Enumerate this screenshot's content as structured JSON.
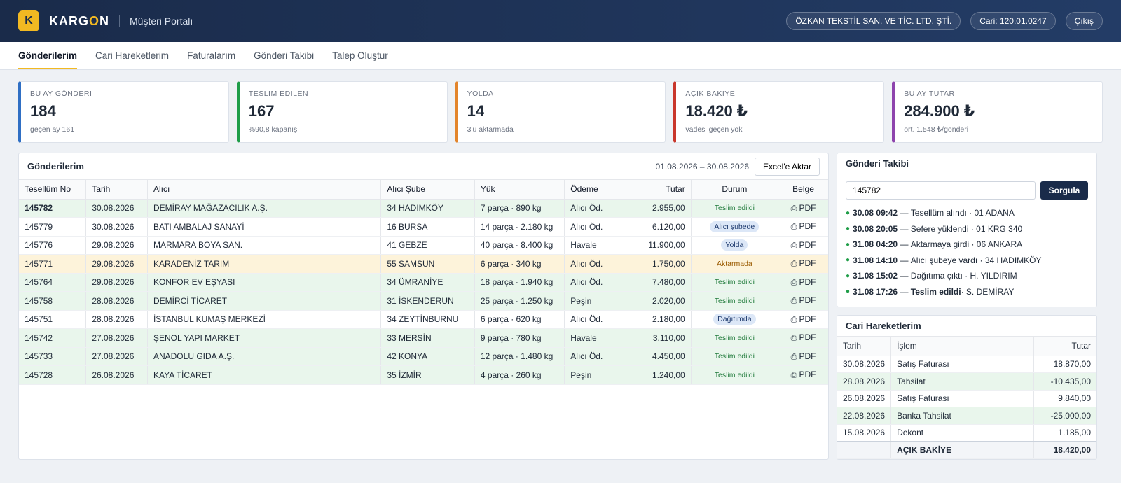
{
  "header": {
    "logo_letter": "K",
    "brand_pre": "KARG",
    "brand_o": "O",
    "brand_post": "N",
    "portal": "Müşteri Portalı",
    "company": "ÖZKAN TEKSTİL SAN. VE TİC. LTD. ŞTİ.",
    "account": "Cari: 120.01.0247",
    "logout": "Çıkış"
  },
  "tabs": [
    "Gönderilerim",
    "Cari Hareketlerim",
    "Faturalarım",
    "Gönderi Takibi",
    "Talep Oluştur"
  ],
  "kpis": [
    {
      "label": "BU AY GÖNDERİ",
      "value": "184",
      "sub": "geçen ay 161",
      "color": "#2f6fc4"
    },
    {
      "label": "TESLİM EDİLEN",
      "value": "167",
      "sub": "%90,8 kapanış",
      "color": "#1f9d48"
    },
    {
      "label": "YOLDA",
      "value": "14",
      "sub": "3'ü aktarmada",
      "color": "#e3852b"
    },
    {
      "label": "AÇIK BAKİYE",
      "value": "18.420 ₺",
      "sub": "vadesi geçen yok",
      "color": "#c9372c"
    },
    {
      "label": "BU AY TUTAR",
      "value": "284.900 ₺",
      "sub": "ort. 1.548 ₺/gönderi",
      "color": "#8e44ad"
    }
  ],
  "shipments": {
    "title": "Gönderilerim",
    "range": "01.08.2026 – 30.08.2026",
    "export": "Excel'e Aktar",
    "columns": [
      "Tesellüm No",
      "Tarih",
      "Alıcı",
      "Alıcı Şube",
      "Yük",
      "Ödeme",
      "Tutar",
      "Durum",
      "Belge"
    ],
    "rows": [
      {
        "no": "145782",
        "date": "30.08.2026",
        "receiver": "DEMİRAY MAĞAZACILIK A.Ş.",
        "branch": "34 HADIMKÖY",
        "load": "7 parça · 890 kg",
        "payment": "Alıcı Öd.",
        "amount": "2.955,00",
        "status": "Teslim edildi",
        "doc": "PDF"
      },
      {
        "no": "145779",
        "date": "30.08.2026",
        "receiver": "BATI AMBALAJ SANAYİ",
        "branch": "16 BURSA",
        "load": "14 parça · 2.180 kg",
        "payment": "Alıcı Öd.",
        "amount": "6.120,00",
        "status": "Alıcı şubede",
        "doc": "PDF"
      },
      {
        "no": "145776",
        "date": "29.08.2026",
        "receiver": "MARMARA BOYA SAN.",
        "branch": "41 GEBZE",
        "load": "40 parça · 8.400 kg",
        "payment": "Havale",
        "amount": "11.900,00",
        "status": "Yolda",
        "doc": "PDF"
      },
      {
        "no": "145771",
        "date": "29.08.2026",
        "receiver": "KARADENİZ TARIM",
        "branch": "55 SAMSUN",
        "load": "6 parça · 340 kg",
        "payment": "Alıcı Öd.",
        "amount": "1.750,00",
        "status": "Aktarmada",
        "doc": "PDF"
      },
      {
        "no": "145764",
        "date": "29.08.2026",
        "receiver": "KONFOR EV EŞYASI",
        "branch": "34 ÜMRANİYE",
        "load": "18 parça · 1.940 kg",
        "payment": "Alıcı Öd.",
        "amount": "7.480,00",
        "status": "Teslim edildi",
        "doc": "PDF"
      },
      {
        "no": "145758",
        "date": "28.08.2026",
        "receiver": "DEMİRCİ TİCARET",
        "branch": "31 İSKENDERUN",
        "load": "25 parça · 1.250 kg",
        "payment": "Peşin",
        "amount": "2.020,00",
        "status": "Teslim edildi",
        "doc": "PDF"
      },
      {
        "no": "145751",
        "date": "28.08.2026",
        "receiver": "İSTANBUL KUMAŞ MERKEZİ",
        "branch": "34 ZEYTİNBURNU",
        "load": "6 parça · 620 kg",
        "payment": "Alıcı Öd.",
        "amount": "2.180,00",
        "status": "Dağıtımda",
        "doc": "PDF"
      },
      {
        "no": "145742",
        "date": "27.08.2026",
        "receiver": "ŞENOL YAPI MARKET",
        "branch": "33 MERSİN",
        "load": "9 parça · 780 kg",
        "payment": "Havale",
        "amount": "3.110,00",
        "status": "Teslim edildi",
        "doc": "PDF"
      },
      {
        "no": "145733",
        "date": "27.08.2026",
        "receiver": "ANADOLU GIDA A.Ş.",
        "branch": "42 KONYA",
        "load": "12 parça · 1.480 kg",
        "payment": "Alıcı Öd.",
        "amount": "4.450,00",
        "status": "Teslim edildi",
        "doc": "PDF"
      },
      {
        "no": "145728",
        "date": "26.08.2026",
        "receiver": "KAYA TİCARET",
        "branch": "35 İZMİR",
        "load": "4 parça · 260 kg",
        "payment": "Peşin",
        "amount": "1.240,00",
        "status": "Teslim edildi",
        "doc": "PDF"
      }
    ]
  },
  "tracking": {
    "title": "Gönderi Takibi",
    "input_value": "145782",
    "button": "Sorgula",
    "events": [
      {
        "time": "30.08 09:42",
        "text": "Tesellüm alındı · 01 ADANA"
      },
      {
        "time": "30.08 20:05",
        "text": "Sefere yüklendi · 01 KRG 340"
      },
      {
        "time": "31.08 04:20",
        "text": "Aktarmaya girdi · 06 ANKARA"
      },
      {
        "time": "31.08 14:10",
        "text": "Alıcı şubeye vardı · 34 HADIMKÖY"
      },
      {
        "time": "31.08 15:02",
        "text": "Dağıtıma çıktı · H. YILDIRIM"
      },
      {
        "time": "31.08 17:26",
        "text": "Teslim edildi",
        "extra": " · S. DEMİRAY"
      }
    ]
  },
  "ledger": {
    "title": "Cari Hareketlerim",
    "columns": [
      "Tarih",
      "İşlem",
      "Tutar"
    ],
    "rows": [
      {
        "date": "30.08.2026",
        "desc": "Satış Faturası",
        "amount": "18.870,00"
      },
      {
        "date": "28.08.2026",
        "desc": "Tahsilat",
        "amount": "-10.435,00"
      },
      {
        "date": "26.08.2026",
        "desc": "Satış Faturası",
        "amount": "9.840,00"
      },
      {
        "date": "22.08.2026",
        "desc": "Banka Tahsilat",
        "amount": "-25.000,00"
      },
      {
        "date": "15.08.2026",
        "desc": "Dekont",
        "amount": "1.185,00"
      }
    ],
    "total_label": "AÇIK BAKİYE",
    "total": "18.420,00"
  }
}
